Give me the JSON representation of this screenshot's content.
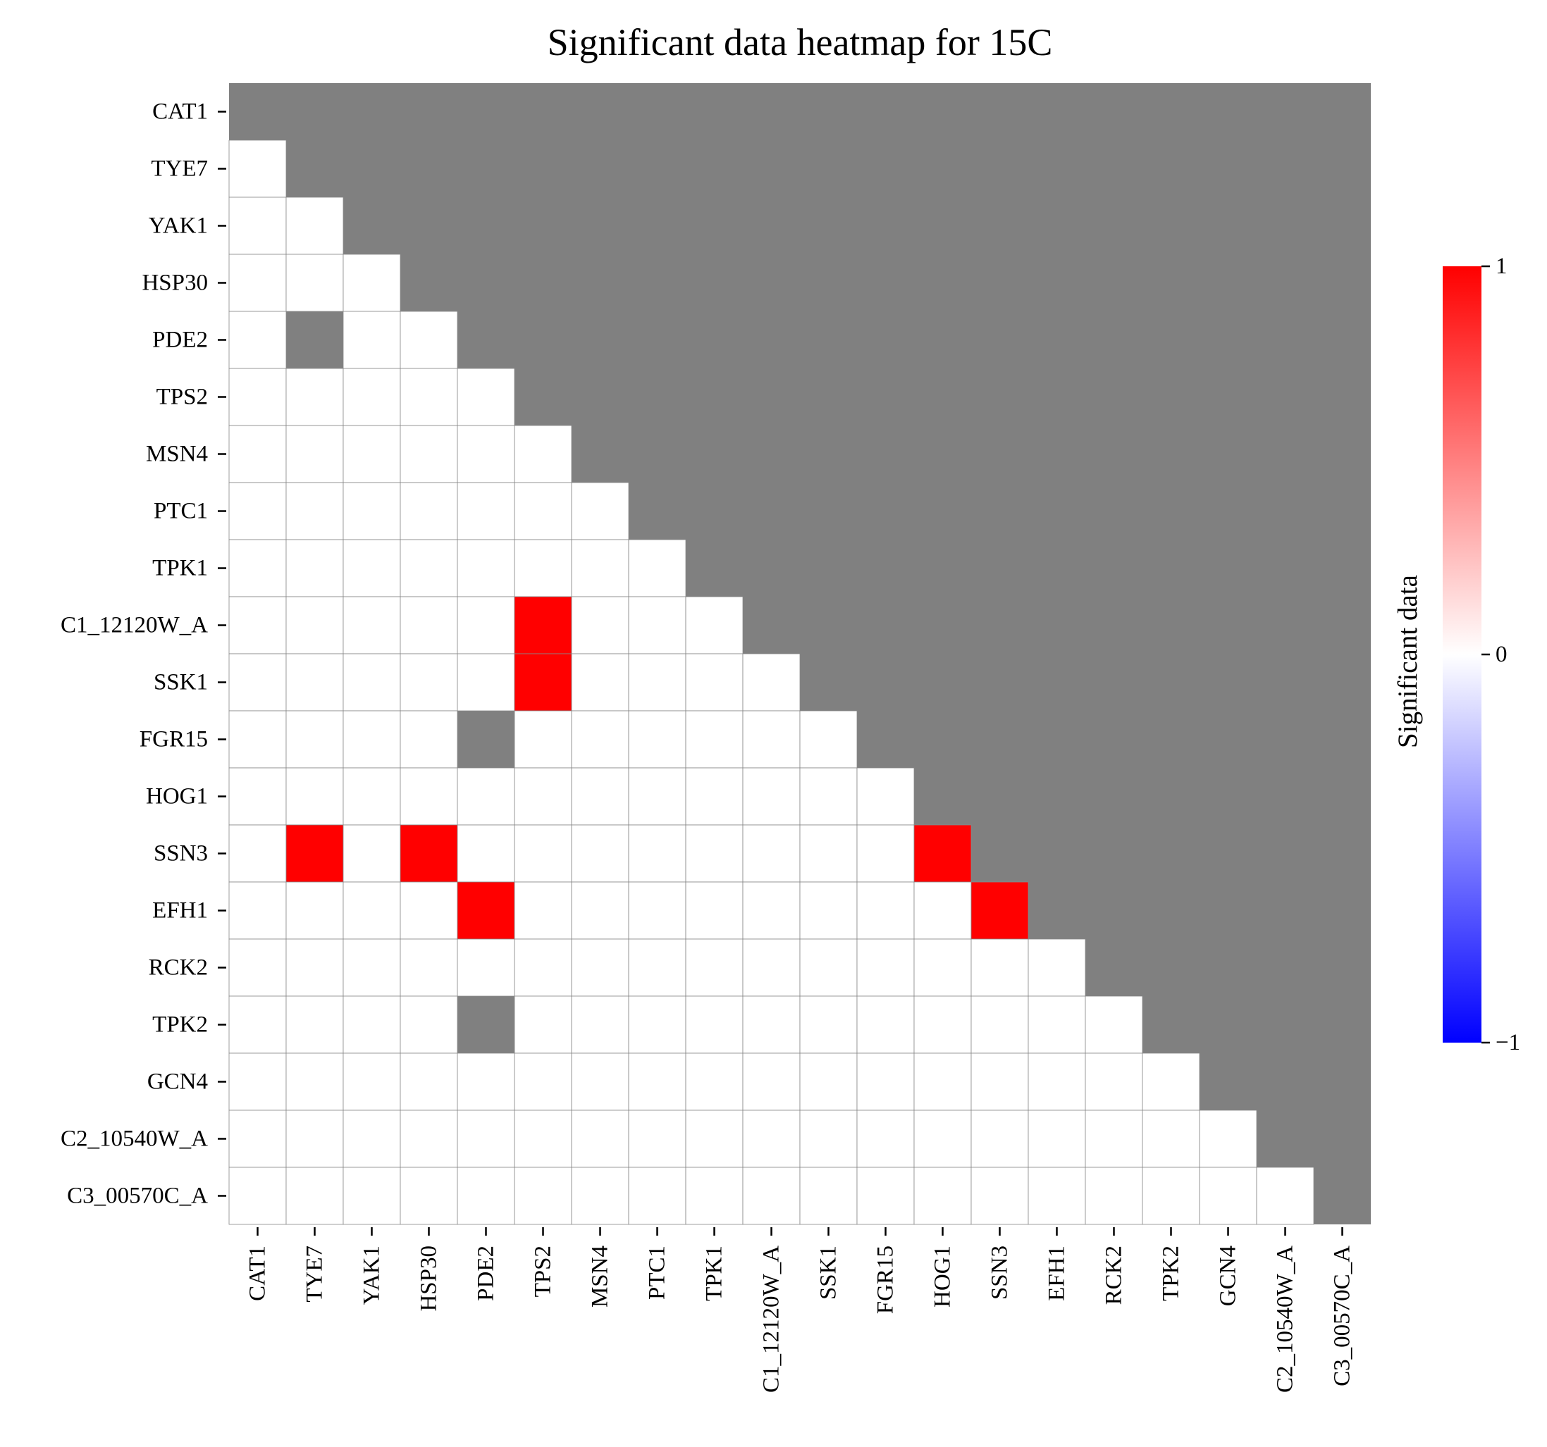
{
  "chart_data": {
    "type": "heatmap",
    "title": "Significant data heatmap for 15C",
    "labels": [
      "CAT1",
      "TYE7",
      "YAK1",
      "HSP30",
      "PDE2",
      "TPS2",
      "MSN4",
      "PTC1",
      "TPK1",
      "C1_12120W_A",
      "SSK1",
      "FGR15",
      "HOG1",
      "SSN3",
      "EFH1",
      "RCK2",
      "TPK2",
      "GCN4",
      "C2_10540W_A",
      "C3_00570C_A"
    ],
    "mask": "upper-triangle (j > i) drawn grey; NaN cells also grey",
    "values": [
      [
        null,
        null,
        null,
        null,
        null,
        null,
        null,
        null,
        null,
        null,
        null,
        null,
        null,
        null,
        null,
        null,
        null,
        null,
        null,
        null
      ],
      [
        0,
        null,
        null,
        null,
        null,
        null,
        null,
        null,
        null,
        null,
        null,
        null,
        null,
        null,
        null,
        null,
        null,
        null,
        null,
        null
      ],
      [
        0,
        0,
        null,
        null,
        null,
        null,
        null,
        null,
        null,
        null,
        null,
        null,
        null,
        null,
        null,
        null,
        null,
        null,
        null,
        null
      ],
      [
        0,
        0,
        0,
        null,
        null,
        null,
        null,
        null,
        null,
        null,
        null,
        null,
        null,
        null,
        null,
        null,
        null,
        null,
        null,
        null
      ],
      [
        0,
        null,
        0,
        0,
        null,
        null,
        null,
        null,
        null,
        null,
        null,
        null,
        null,
        null,
        null,
        null,
        null,
        null,
        null,
        null
      ],
      [
        0,
        0,
        0,
        0,
        0,
        null,
        null,
        null,
        null,
        null,
        null,
        null,
        null,
        null,
        null,
        null,
        null,
        null,
        null,
        null
      ],
      [
        0,
        0,
        0,
        0,
        0,
        0,
        null,
        null,
        null,
        null,
        null,
        null,
        null,
        null,
        null,
        null,
        null,
        null,
        null,
        null
      ],
      [
        0,
        0,
        0,
        0,
        0,
        0,
        0,
        null,
        null,
        null,
        null,
        null,
        null,
        null,
        null,
        null,
        null,
        null,
        null,
        null
      ],
      [
        0,
        0,
        0,
        0,
        0,
        0,
        0,
        0,
        null,
        null,
        null,
        null,
        null,
        null,
        null,
        null,
        null,
        null,
        null,
        null
      ],
      [
        0,
        0,
        0,
        0,
        0,
        1,
        0,
        0,
        0,
        null,
        null,
        null,
        null,
        null,
        null,
        null,
        null,
        null,
        null,
        null
      ],
      [
        0,
        0,
        0,
        0,
        0,
        1,
        0,
        0,
        0,
        0,
        null,
        null,
        null,
        null,
        null,
        null,
        null,
        null,
        null,
        null
      ],
      [
        0,
        0,
        0,
        0,
        null,
        0,
        0,
        0,
        0,
        0,
        0,
        null,
        null,
        null,
        null,
        null,
        null,
        null,
        null,
        null
      ],
      [
        0,
        0,
        0,
        0,
        0,
        0,
        0,
        0,
        0,
        0,
        0,
        0,
        null,
        null,
        null,
        null,
        null,
        null,
        null,
        null
      ],
      [
        0,
        1,
        0,
        1,
        0,
        0,
        0,
        0,
        0,
        0,
        0,
        0,
        1,
        null,
        null,
        null,
        null,
        null,
        null,
        null
      ],
      [
        0,
        0,
        0,
        0,
        1,
        0,
        0,
        0,
        0,
        0,
        0,
        0,
        0,
        1,
        null,
        null,
        null,
        null,
        null,
        null
      ],
      [
        0,
        0,
        0,
        0,
        0,
        0,
        0,
        0,
        0,
        0,
        0,
        0,
        0,
        0,
        0,
        null,
        null,
        null,
        null,
        null
      ],
      [
        0,
        0,
        0,
        0,
        null,
        0,
        0,
        0,
        0,
        0,
        0,
        0,
        0,
        0,
        0,
        0,
        null,
        null,
        null,
        null
      ],
      [
        0,
        0,
        0,
        0,
        0,
        0,
        0,
        0,
        0,
        0,
        0,
        0,
        0,
        0,
        0,
        0,
        0,
        null,
        null,
        null
      ],
      [
        0,
        0,
        0,
        0,
        0,
        0,
        0,
        0,
        0,
        0,
        0,
        0,
        0,
        0,
        0,
        0,
        0,
        0,
        null,
        null
      ],
      [
        0,
        0,
        0,
        0,
        0,
        0,
        0,
        0,
        0,
        0,
        0,
        0,
        0,
        0,
        0,
        0,
        0,
        0,
        0,
        null
      ]
    ],
    "vmin": -1,
    "vmax": 1,
    "colormap": {
      "low": "#0000ff",
      "mid": "#ffffff",
      "high": "#ff0000"
    },
    "mask_color": "#808080",
    "grid_line_color": "#888888",
    "colorbar": {
      "label": "Significant data",
      "ticks": [
        1,
        0,
        -1
      ],
      "tick_labels": [
        "1",
        "0",
        "−1"
      ]
    }
  }
}
